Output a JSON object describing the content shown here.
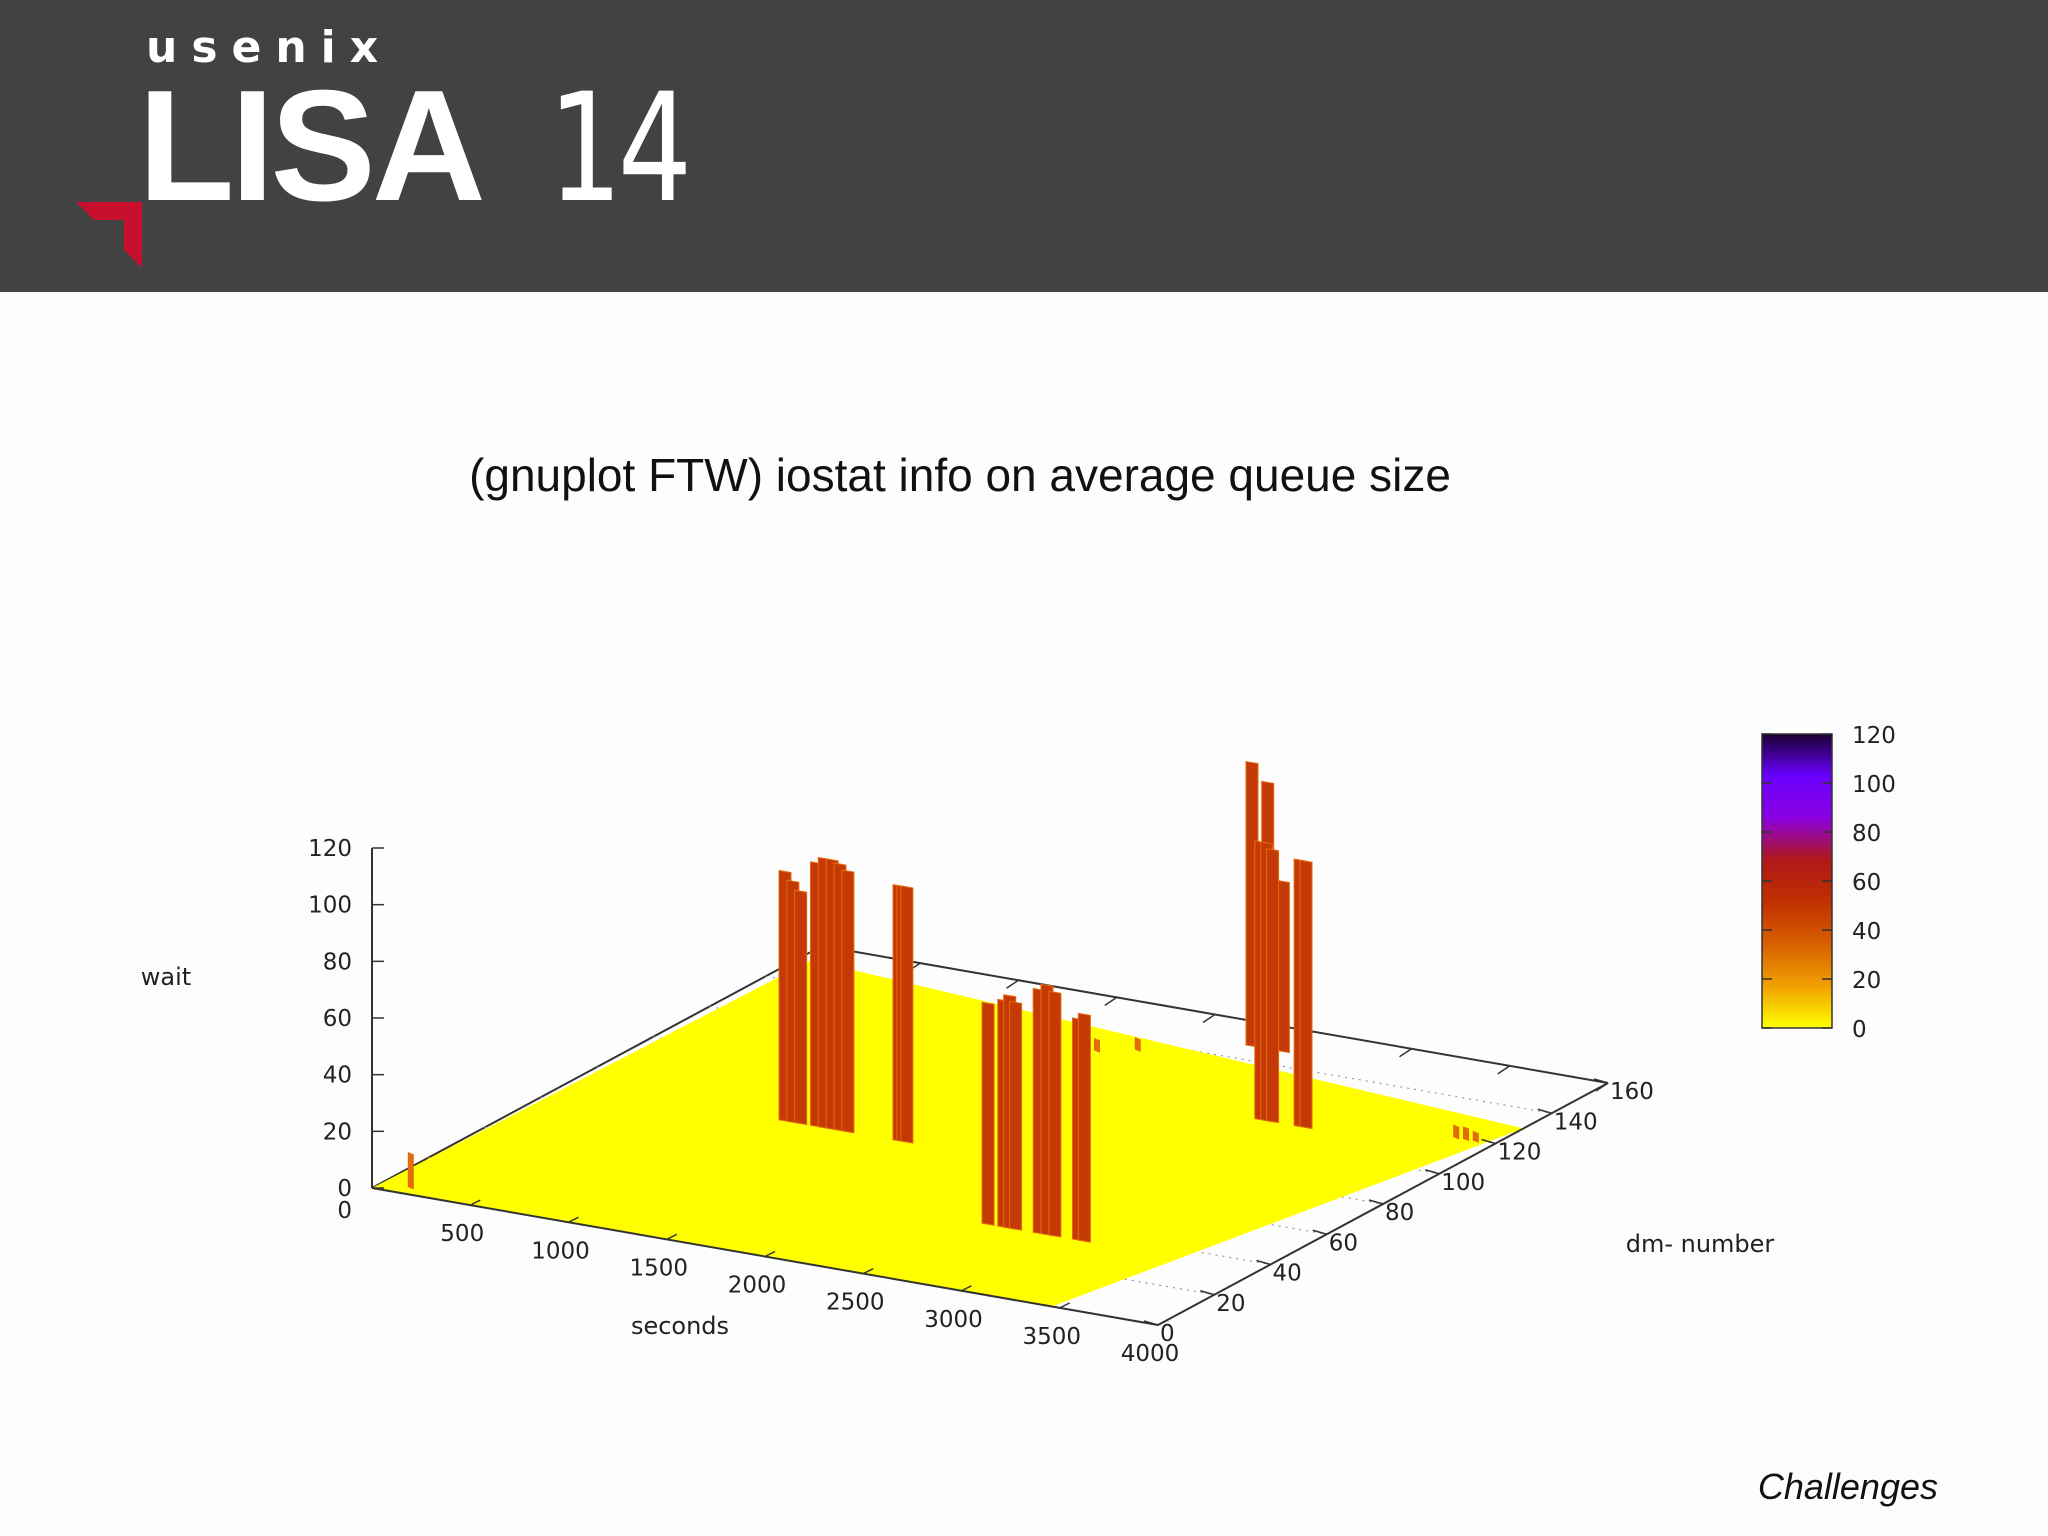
{
  "header": {
    "brand_small": "usenix",
    "brand_big": "LISA",
    "brand_year": "14"
  },
  "slide": {
    "title": "(gnuplot FTW) iostat info on average queue size",
    "footer_note": "Challenges"
  },
  "colors": {
    "header_bg": "#434242",
    "accent_red": "#c8102e",
    "surface_base": "#ffff00",
    "bar_dark": "#c43a06",
    "bar_light": "#e56a0c"
  },
  "chart_data": {
    "type": "surface3d",
    "xlabel": "seconds",
    "ylabel": "dm- number",
    "zlabel": "wait",
    "xlim": [
      0,
      4000
    ],
    "ylim": [
      0,
      160
    ],
    "zlim": [
      0,
      120
    ],
    "x_ticks": [
      "500",
      "1000",
      "1500",
      "2000",
      "2500",
      "3000",
      "3500",
      "4000"
    ],
    "y_ticks": [
      "0",
      "20",
      "40",
      "60",
      "80",
      "100",
      "120",
      "140",
      "160"
    ],
    "z_ticks": [
      "0",
      "20",
      "40",
      "60",
      "80",
      "100",
      "120"
    ],
    "x_origin_label": "0",
    "colorbar": {
      "ticks": [
        "0",
        "20",
        "40",
        "60",
        "80",
        "100",
        "120"
      ],
      "palette": [
        "#ffff00",
        "#f0a000",
        "#d86000",
        "#c03000",
        "#b01818",
        "#8a00e0",
        "#6a00ff",
        "#1a0030"
      ]
    },
    "spikes": [
      {
        "x": 140,
        "y": 4,
        "z": 12
      },
      {
        "x": 1800,
        "y": 132,
        "z": 4
      },
      {
        "x": 1950,
        "y": 136,
        "z": 4
      },
      {
        "x": 1100,
        "y": 70,
        "z": 88
      },
      {
        "x": 1140,
        "y": 70,
        "z": 85
      },
      {
        "x": 1180,
        "y": 70,
        "z": 82
      },
      {
        "x": 1260,
        "y": 70,
        "z": 93
      },
      {
        "x": 1300,
        "y": 70,
        "z": 95
      },
      {
        "x": 1340,
        "y": 70,
        "z": 95
      },
      {
        "x": 1380,
        "y": 70,
        "z": 94
      },
      {
        "x": 1420,
        "y": 70,
        "z": 92
      },
      {
        "x": 1680,
        "y": 70,
        "z": 90
      },
      {
        "x": 1700,
        "y": 70,
        "z": 90
      },
      {
        "x": 1720,
        "y": 70,
        "z": 90
      },
      {
        "x": 2620,
        "y": 36,
        "z": 78
      },
      {
        "x": 2700,
        "y": 36,
        "z": 80
      },
      {
        "x": 2730,
        "y": 36,
        "z": 82
      },
      {
        "x": 2760,
        "y": 36,
        "z": 80
      },
      {
        "x": 2880,
        "y": 36,
        "z": 86
      },
      {
        "x": 2920,
        "y": 36,
        "z": 88
      },
      {
        "x": 2960,
        "y": 36,
        "z": 86
      },
      {
        "x": 3080,
        "y": 36,
        "z": 78
      },
      {
        "x": 3110,
        "y": 36,
        "z": 80
      },
      {
        "x": 2920,
        "y": 112,
        "z": 98
      },
      {
        "x": 2950,
        "y": 112,
        "z": 98
      },
      {
        "x": 2980,
        "y": 112,
        "z": 96
      },
      {
        "x": 3120,
        "y": 112,
        "z": 94
      },
      {
        "x": 3150,
        "y": 112,
        "z": 94
      },
      {
        "x": 2360,
        "y": 148,
        "z": 100
      },
      {
        "x": 2440,
        "y": 148,
        "z": 94
      },
      {
        "x": 2520,
        "y": 148,
        "z": 60
      },
      {
        "x": 3800,
        "y": 120,
        "z": 4
      },
      {
        "x": 3850,
        "y": 120,
        "z": 4
      },
      {
        "x": 3900,
        "y": 120,
        "z": 3
      }
    ]
  }
}
